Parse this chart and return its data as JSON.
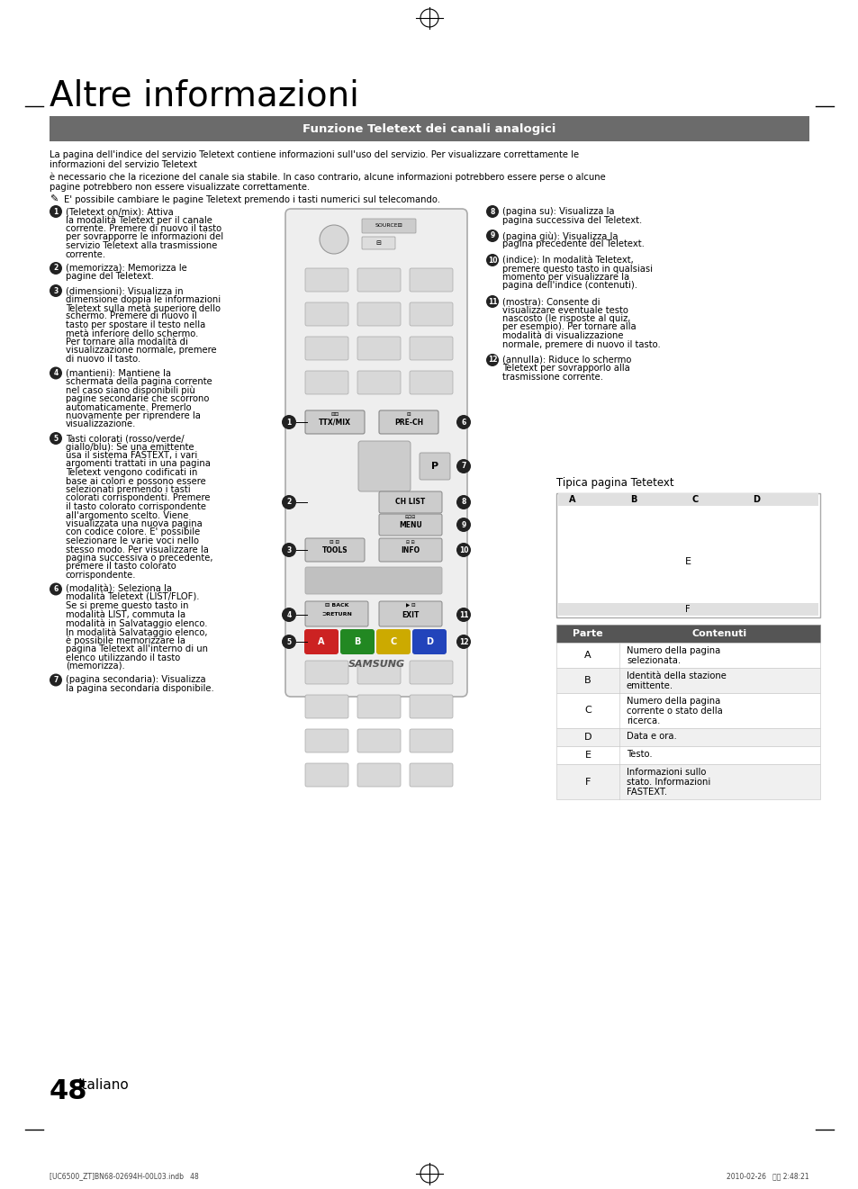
{
  "title": "Altre informazioni",
  "section_header": "Funzione Teletext dei canali analogici",
  "header_bg": "#6b6b6b",
  "header_text_color": "#ffffff",
  "body_bg": "#ffffff",
  "text_color": "#000000",
  "page_width": 9.54,
  "page_height": 13.21,
  "intro_text1": "La pagina dell'indice del servizio Teletext contiene informazioni sull'uso del servizio. Per visualizzare correttamente le",
  "intro_text1b": "informazioni del servizio Teletext",
  "intro_text2": "è necessario che la ricezione del canale sia stabile. In caso contrario, alcune informazioni potrebbero essere perse o alcune",
  "intro_text2b": "pagine potrebbero non essere visualizzate correttamente.",
  "note_text": "E' possibile cambiare le pagine Teletext premendo i tasti numerici sul telecomando.",
  "left_items": [
    {
      "num": "1",
      "text": "(Teletext on/mix): Attiva\nla modalità Teletext per il canale\ncorrente. Premere di nuovo il tasto\nper sovrapporre le informazioni del\nservizio Teletext alla trasmissione\ncorrente."
    },
    {
      "num": "2",
      "text": "(memorizza): Memorizza le\npagine del Teletext."
    },
    {
      "num": "3",
      "text": "(dimensioni): Visualizza in\ndimensione doppia le informazioni\nTeletext sulla metà superiore dello\nschermo. Premere di nuovo il\ntasto per spostare il testo nella\nmetà inferiore dello schermo.\nPer tornare alla modalità di\nvisualizzazione normale, premere\ndi nuovo il tasto."
    },
    {
      "num": "4",
      "text": "(mantieni): Mantiene la\nschermata della pagina corrente\nnel caso siano disponibili più\npagine secondarie che scorrono\nautomaticamente. Premerlo\nnuovamente per riprendere la\nvisualizzazione."
    },
    {
      "num": "5",
      "text": "Tasti colorati (rosso/verde/\ngiallo/blu): Se una emittente\nusa il sistema FASTEXT, i vari\nargomenti trattati in una pagina\nTeletext vengono codificati in\nbase ai colori e possono essere\nselezionati premendo i tasti\ncolorati corrispondenti. Premere\nil tasto colorato corrispondente\nall'argomento scelto. Viene\nvisualizzata una nuova pagina\ncon codice colore. E' possibile\nselezionare le varie voci nello\nstesso modo. Per visualizzare la\npagina successiva o precedente,\npremere il tasto colorato\ncorrispondente."
    },
    {
      "num": "6",
      "text": "(modalità): Seleziona la\nmodalità Teletext (LIST/FLOF).\nSe si preme questo tasto in\nmodalità LIST, commuta la\nmodalità in Salvataggio elenco.\nIn modalità Salvataggio elenco,\nè possibile memorizzare la\npagina Teletext all'interno di un\nelenco utilizzando il tasto\n(memorizza)."
    },
    {
      "num": "7",
      "text": "(pagina secondaria): Visualizza\nla pagina secondaria disponibile."
    }
  ],
  "right_items": [
    {
      "num": "8",
      "text": "(pagina su): Visualizza la\npagina successiva del Teletext."
    },
    {
      "num": "9",
      "text": "(pagina giù): Visualizza la\npagina precedente del Teletext."
    },
    {
      "num": "10",
      "text": "(indice): In modalità Teletext,\npremere questo tasto in qualsiasi\nmomento per visualizzare la\npagina dell'indice (contenuti)."
    },
    {
      "num": "11",
      "text": "(mostra): Consente di\nvisualizzare eventuale testo\nnascosto (le risposte al quiz,\nper esempio). Per tornare alla\nmodalità di visualizzazione\nnormale, premere di nuovo il tasto."
    },
    {
      "num": "12",
      "text": "(annulla): Riduce lo schermo\nTeletext per sovrapporlo alla\ntrasmissione corrente."
    }
  ],
  "tipica_title": "Tipica pagina Tetetext",
  "table_headers": [
    "Parte",
    "Contenuti"
  ],
  "table_rows": [
    [
      "A",
      "Numero della pagina\nselezionata."
    ],
    [
      "B",
      "Identità della stazione\nemittente."
    ],
    [
      "C",
      "Numero della pagina\ncorrente o stato della\nricerca."
    ],
    [
      "D",
      "Data e ora."
    ],
    [
      "E",
      "Testo."
    ],
    [
      "F",
      "Informazioni sullo\nstato. Informazioni\nFASTEXT."
    ]
  ],
  "page_num": "48",
  "page_lang": "Italiano",
  "footer_left": "[UC6500_ZT]BN68-02694H-00L03.indb   48",
  "footer_right": "2010-02-26   오후 2:48:21"
}
